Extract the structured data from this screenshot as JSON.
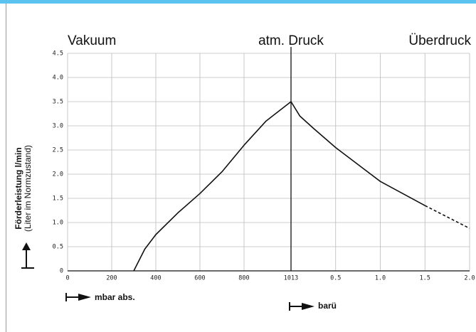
{
  "chart_data": {
    "type": "line",
    "header_left": "Vakuum",
    "header_center": "atm. Druck",
    "header_right": "Überdruck",
    "y_label": "Förderleistung l/min",
    "y_label_sub": "(Liter im Normzustand)",
    "x_label": "mbar abs.",
    "x2_label": "barü",
    "xlim": [
      0,
      1013
    ],
    "xticks": [
      0,
      200,
      400,
      600,
      800,
      1013
    ],
    "x2lim": [
      0,
      2
    ],
    "x2ticks": [
      0.5,
      {
        "value": 1,
        "label": "1.0"
      },
      1.5,
      {
        "value": 2,
        "label": "2.0"
      }
    ],
    "ylim": [
      0,
      4.5
    ],
    "yticks": [
      0,
      0.5,
      {
        "value": 1,
        "label": "1.0"
      },
      1.5,
      {
        "value": 2,
        "label": "2.0"
      },
      2.5,
      {
        "value": 3,
        "label": "3.0"
      },
      3.5,
      {
        "value": 4,
        "label": "4.0"
      },
      4.5
    ],
    "grid": true,
    "series": [
      {
        "color": "#111111",
        "x": [
          300,
          350,
          400,
          500,
          600,
          700,
          800,
          900,
          1013
        ],
        "values": [
          0,
          0.45,
          0.75,
          1.2,
          1.6,
          2.05,
          2.6,
          3.1,
          3.5
        ]
      },
      {
        "color": "#111111",
        "axis": "x2",
        "x": [
          0,
          0.1,
          0.25,
          0.5,
          0.75,
          1.0,
          1.25,
          1.5
        ],
        "values": [
          3.5,
          3.2,
          2.95,
          2.55,
          2.2,
          1.85,
          1.6,
          1.35
        ]
      },
      {
        "color": "#111111",
        "axis": "x2",
        "dashed": true,
        "x": [
          1.5,
          2.0
        ],
        "values": [
          1.35,
          0.88
        ]
      }
    ]
  }
}
